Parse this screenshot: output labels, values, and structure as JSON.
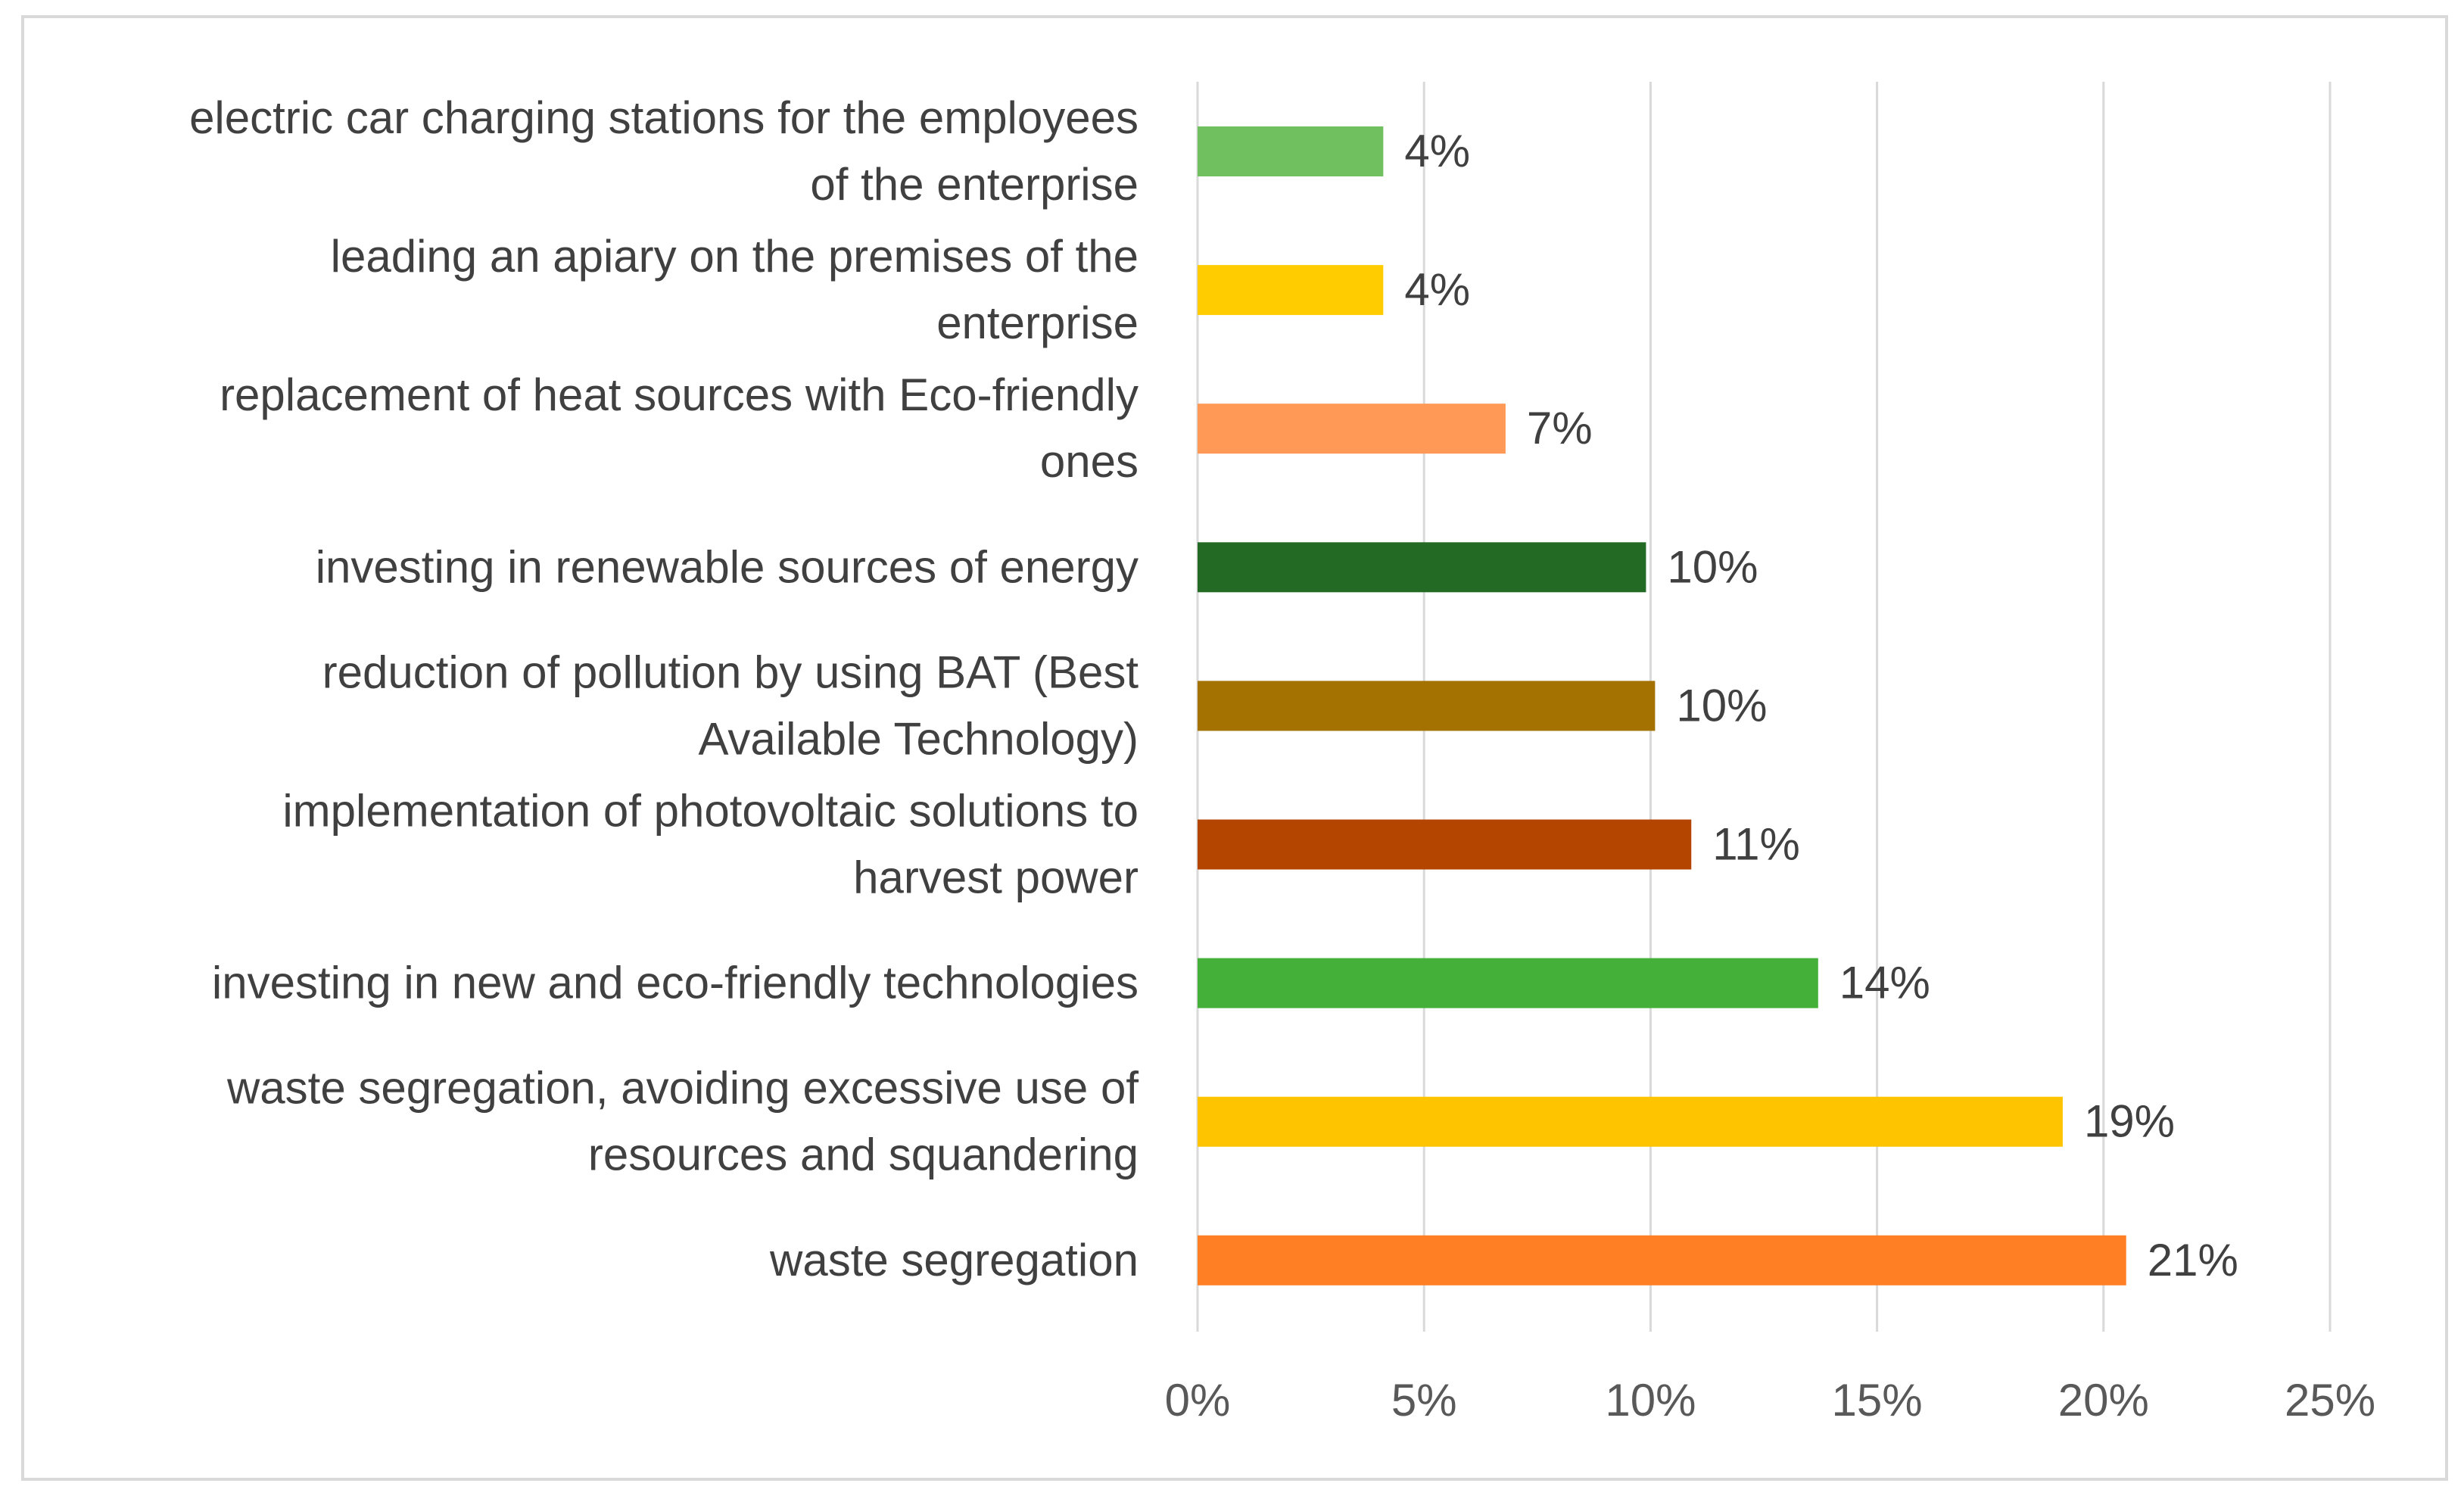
{
  "chart_data": {
    "type": "bar",
    "orientation": "horizontal",
    "title": "",
    "xlabel": "",
    "ylabel": "",
    "xlim": [
      0,
      25
    ],
    "grid": true,
    "legend": "none",
    "categories": [
      [
        "electric car charging stations for the employees",
        "of the enterprise"
      ],
      [
        "leading  an  apiary on the premises of the",
        "enterprise"
      ],
      [
        "replacement of heat sources with Eco-friendly",
        "ones"
      ],
      [
        "investing in renewable sources of energy"
      ],
      [
        "reduction of pollution by using BAT (Best",
        "Available Technology)"
      ],
      [
        "implementation of photovoltaic solutions to",
        "harvest power"
      ],
      [
        "investing in new and eco-friendly technologies"
      ],
      [
        "waste segregation, avoiding excessive use of",
        "resources and squandering"
      ],
      [
        "waste segregation"
      ]
    ],
    "values": [
      4.1,
      4.1,
      6.8,
      9.9,
      10.1,
      10.9,
      13.7,
      19.1,
      20.5
    ],
    "value_labels": [
      "4%",
      "4%",
      "7%",
      "10%",
      "10%",
      "11%",
      "14%",
      "19%",
      "21%"
    ],
    "colors": [
      "#70c060",
      "#ffcc00",
      "#ff9955",
      "#236b25",
      "#a37200",
      "#b34500",
      "#44b03a",
      "#ffc400",
      "#ff7f25"
    ],
    "x_ticks": [
      {
        "value": 0,
        "label": "0%"
      },
      {
        "value": 5,
        "label": "5%"
      },
      {
        "value": 10,
        "label": "10%"
      },
      {
        "value": 15,
        "label": "15%"
      },
      {
        "value": 20,
        "label": "20%"
      },
      {
        "value": 25,
        "label": "25%"
      }
    ]
  }
}
